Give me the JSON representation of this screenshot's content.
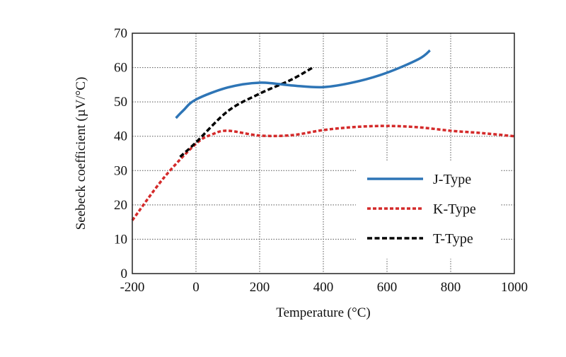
{
  "chart_data": {
    "type": "line",
    "title": "",
    "xlabel": "Temperature (°C)",
    "ylabel": "Seebeck coefficient (µV/°C)",
    "xlim": [
      -200,
      1000
    ],
    "ylim": [
      0,
      70
    ],
    "xticks": [
      -200,
      0,
      200,
      400,
      600,
      800,
      1000
    ],
    "yticks": [
      0,
      10,
      20,
      30,
      40,
      50,
      60,
      70
    ],
    "grid": true,
    "legend_position": "bottom-right",
    "series": [
      {
        "name": "J-Type",
        "color": "#2e75b6",
        "style": "solid",
        "x": [
          -63,
          -40,
          0,
          100,
          200,
          300,
          400,
          500,
          600,
          700,
          735
        ],
        "y": [
          45.3,
          47.5,
          50.7,
          54.2,
          55.6,
          54.8,
          54.3,
          55.8,
          58.5,
          62.5,
          65
        ]
      },
      {
        "name": "K-Type",
        "color": "#d42a2a",
        "style": "dotted",
        "x": [
          -200,
          -100,
          0,
          50,
          100,
          200,
          300,
          400,
          500,
          600,
          700,
          800,
          900,
          1000
        ],
        "y": [
          15.5,
          28,
          37.8,
          40.5,
          41.6,
          40.2,
          40.3,
          41.8,
          42.7,
          43,
          42.6,
          41.6,
          40.9,
          40
        ]
      },
      {
        "name": "T-Type",
        "color": "#000000",
        "style": "dashed",
        "x": [
          -50,
          0,
          100,
          200,
          300,
          370
        ],
        "y": [
          34,
          38.2,
          47.3,
          52.4,
          56.5,
          60.2
        ]
      }
    ]
  }
}
